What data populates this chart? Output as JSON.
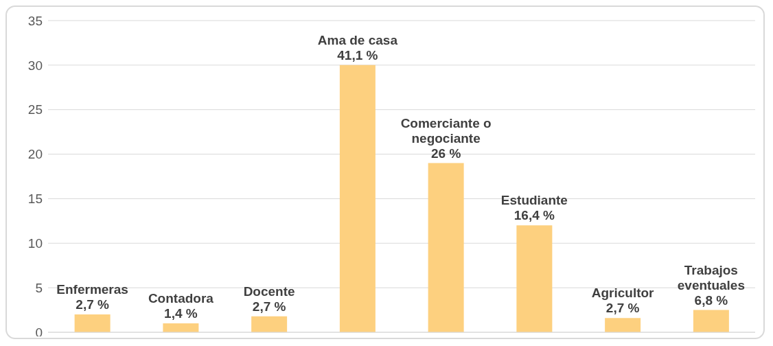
{
  "chart_data": {
    "type": "bar",
    "categories": [
      null,
      null,
      null,
      null,
      null,
      null,
      null,
      null
    ],
    "values": [
      2,
      1,
      1.8,
      30,
      19,
      12,
      1.6,
      2.5
    ],
    "color": "#fdd07f",
    "value_labels": [
      "Enfermeras\n2,7 %",
      "Contadora\n1,4 %",
      "Docente\n2,7 %",
      "Ama de casa\n41,1 %",
      "Comerciante o\nnegociante\n26 %",
      "Estudiante\n16,4 %",
      "Agricultor\n2,7 %",
      "Trabajos\neventuales\n6,8 %"
    ],
    "ylim": [
      0,
      35
    ],
    "yticks": [
      0,
      5,
      10,
      15,
      20,
      25,
      30,
      35
    ],
    "grid": "y"
  }
}
